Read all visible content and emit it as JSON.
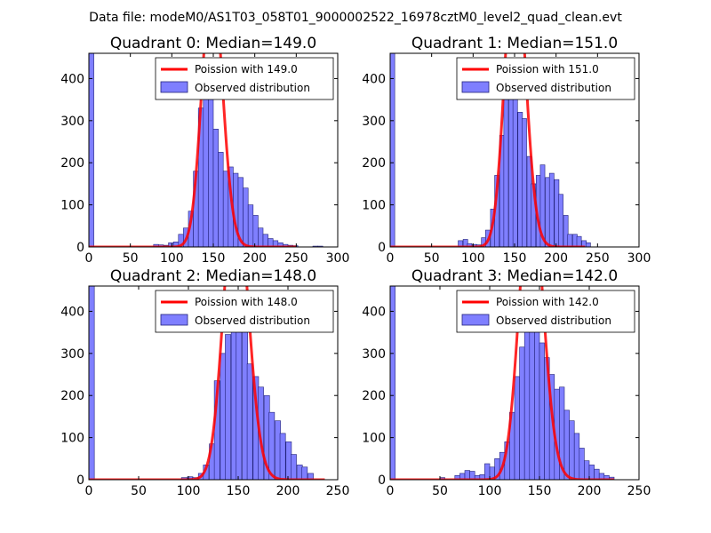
{
  "figure": {
    "suptitle": "Data file: modeM0/AS1T03_058T01_9000002522_16978cztM0_level2_quad_clean.evt"
  },
  "colors": {
    "bar_fill": "#7f7fff",
    "bar_edge": "#22227a",
    "curve": "#ff0000",
    "curve_overlap": "#ff8080"
  },
  "chart_data": [
    {
      "type": "bar",
      "title": "Quadrant 0: Median=149.0",
      "xlim": [
        0,
        300
      ],
      "ylim": [
        0,
        460
      ],
      "xticks": [
        0,
        50,
        100,
        150,
        200,
        250,
        300
      ],
      "yticks": [
        0,
        100,
        200,
        300,
        400
      ],
      "bin_width": 6,
      "bins": [
        [
          0,
          460
        ],
        [
          78,
          6
        ],
        [
          84,
          5
        ],
        [
          90,
          4
        ],
        [
          96,
          10
        ],
        [
          102,
          12
        ],
        [
          108,
          30
        ],
        [
          114,
          45
        ],
        [
          120,
          85
        ],
        [
          126,
          180
        ],
        [
          132,
          330
        ],
        [
          138,
          380
        ],
        [
          144,
          430
        ],
        [
          150,
          280
        ],
        [
          156,
          225
        ],
        [
          162,
          180
        ],
        [
          168,
          190
        ],
        [
          174,
          175
        ],
        [
          180,
          165
        ],
        [
          186,
          140
        ],
        [
          192,
          100
        ],
        [
          198,
          75
        ],
        [
          204,
          45
        ],
        [
          210,
          30
        ],
        [
          216,
          20
        ],
        [
          222,
          15
        ],
        [
          228,
          10
        ],
        [
          234,
          6
        ],
        [
          240,
          4
        ],
        [
          246,
          3
        ],
        [
          270,
          2
        ],
        [
          276,
          2
        ]
      ],
      "poisson_mean": 149,
      "curve_range": [
        0,
        250
      ],
      "legend": {
        "curve": "Poission with 149.0",
        "bars": "Observed distribution"
      }
    },
    {
      "type": "bar",
      "title": "Quadrant 1: Median=151.0",
      "xlim": [
        0,
        300
      ],
      "ylim": [
        0,
        460
      ],
      "xticks": [
        0,
        50,
        100,
        150,
        200,
        250,
        300
      ],
      "yticks": [
        0,
        100,
        200,
        300,
        400
      ],
      "bin_width": 5.5,
      "bins": [
        [
          0,
          460
        ],
        [
          82,
          15
        ],
        [
          88,
          18
        ],
        [
          93,
          8
        ],
        [
          99,
          6
        ],
        [
          104,
          5
        ],
        [
          110,
          22
        ],
        [
          115,
          40
        ],
        [
          121,
          90
        ],
        [
          126,
          170
        ],
        [
          132,
          265
        ],
        [
          137,
          350
        ],
        [
          143,
          380
        ],
        [
          148,
          430
        ],
        [
          154,
          320
        ],
        [
          159,
          305
        ],
        [
          165,
          215
        ],
        [
          170,
          150
        ],
        [
          176,
          170
        ],
        [
          181,
          195
        ],
        [
          187,
          165
        ],
        [
          192,
          175
        ],
        [
          198,
          160
        ],
        [
          203,
          125
        ],
        [
          209,
          75
        ],
        [
          214,
          30
        ],
        [
          220,
          30
        ],
        [
          225,
          25
        ],
        [
          231,
          15
        ],
        [
          236,
          10
        ]
      ],
      "poisson_mean": 151,
      "curve_range": [
        0,
        235
      ],
      "legend": {
        "curve": "Poission with 151.0",
        "bars": "Observed distribution"
      }
    },
    {
      "type": "bar",
      "title": "Quadrant 2: Median=148.0",
      "xlim": [
        0,
        250
      ],
      "ylim": [
        0,
        460
      ],
      "xticks": [
        0,
        50,
        100,
        150,
        200,
        250
      ],
      "yticks": [
        0,
        100,
        200,
        300,
        400
      ],
      "bin_width": 5.5,
      "bins": [
        [
          0,
          460
        ],
        [
          93,
          5
        ],
        [
          99,
          7
        ],
        [
          104,
          5
        ],
        [
          110,
          15
        ],
        [
          115,
          35
        ],
        [
          121,
          85
        ],
        [
          126,
          235
        ],
        [
          132,
          300
        ],
        [
          137,
          345
        ],
        [
          143,
          395
        ],
        [
          148,
          440
        ],
        [
          154,
          395
        ],
        [
          159,
          275
        ],
        [
          165,
          245
        ],
        [
          170,
          220
        ],
        [
          176,
          200
        ],
        [
          181,
          160
        ],
        [
          187,
          140
        ],
        [
          192,
          110
        ],
        [
          198,
          90
        ],
        [
          203,
          60
        ],
        [
          209,
          35
        ],
        [
          214,
          30
        ],
        [
          220,
          15
        ]
      ],
      "poisson_mean": 148,
      "curve_range": [
        0,
        237
      ],
      "legend": {
        "curve": "Poission with 148.0",
        "bars": "Observed distribution"
      }
    },
    {
      "type": "bar",
      "title": "Quadrant 3: Median=142.0",
      "xlim": [
        0,
        250
      ],
      "ylim": [
        0,
        460
      ],
      "xticks": [
        0,
        50,
        100,
        150,
        200,
        250
      ],
      "yticks": [
        0,
        100,
        200,
        300,
        400
      ],
      "bin_width": 5,
      "bins": [
        [
          0,
          460
        ],
        [
          50,
          5
        ],
        [
          65,
          10
        ],
        [
          70,
          15
        ],
        [
          75,
          22
        ],
        [
          80,
          20
        ],
        [
          85,
          10
        ],
        [
          90,
          12
        ],
        [
          95,
          38
        ],
        [
          100,
          30
        ],
        [
          105,
          50
        ],
        [
          110,
          65
        ],
        [
          115,
          90
        ],
        [
          120,
          160
        ],
        [
          125,
          245
        ],
        [
          130,
          315
        ],
        [
          135,
          370
        ],
        [
          140,
          410
        ],
        [
          145,
          380
        ],
        [
          150,
          325
        ],
        [
          155,
          290
        ],
        [
          160,
          250
        ],
        [
          165,
          215
        ],
        [
          170,
          220
        ],
        [
          175,
          165
        ],
        [
          180,
          140
        ],
        [
          185,
          110
        ],
        [
          190,
          75
        ],
        [
          195,
          45
        ],
        [
          200,
          35
        ],
        [
          205,
          25
        ],
        [
          210,
          15
        ],
        [
          215,
          10
        ],
        [
          220,
          6
        ]
      ],
      "poisson_mean": 142,
      "curve_range": [
        0,
        225
      ],
      "legend": {
        "curve": "Poission with 142.0",
        "bars": "Observed distribution"
      }
    }
  ]
}
